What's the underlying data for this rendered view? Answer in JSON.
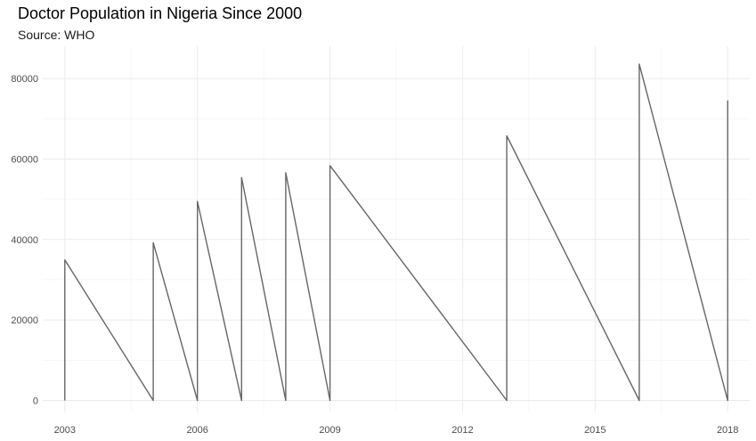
{
  "chart_data": {
    "type": "line",
    "title": "Doctor Population in Nigeria Since 2000",
    "subtitle": "Source: WHO",
    "xlabel": "",
    "ylabel": "",
    "xlim": [
      2002.5,
      2018.5
    ],
    "ylim": [
      -3000,
      88000
    ],
    "x_ticks": [
      2003,
      2006,
      2009,
      2012,
      2015,
      2018
    ],
    "y_ticks": [
      0,
      20000,
      40000,
      60000,
      80000
    ],
    "x_tick_labels": [
      "2003",
      "2006",
      "2009",
      "2012",
      "2015",
      "2018"
    ],
    "y_tick_labels": [
      "0",
      "20000",
      "40000",
      "60000",
      "80000"
    ],
    "grid": true,
    "legend": "none",
    "line_color": "#666666",
    "series": [
      {
        "x": [
          2003,
          2003,
          2005,
          2005,
          2006,
          2006,
          2007,
          2007,
          2008,
          2008,
          2009,
          2009,
          2013,
          2013,
          2016,
          2016,
          2018,
          2018
        ],
        "y": [
          0,
          34923,
          0,
          39210,
          0,
          49444,
          0,
          55376,
          0,
          56580,
          0,
          58363,
          0,
          65759,
          0,
          83597,
          0,
          74543
        ]
      }
    ]
  }
}
